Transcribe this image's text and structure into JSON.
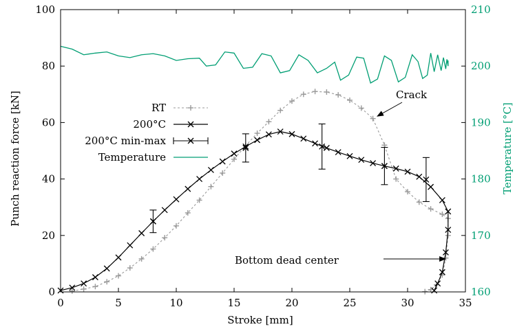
{
  "chart_data": {
    "type": "line",
    "xlabel": "Stroke [mm]",
    "ylabel": "Punch reaction force [kN]",
    "y2label": "Temperature [°C]",
    "xlim": [
      0,
      35
    ],
    "ylim": [
      0,
      100
    ],
    "y2lim": [
      160,
      210
    ],
    "xticks": [
      "0",
      "5",
      "10",
      "15",
      "20",
      "25",
      "30",
      "35"
    ],
    "yticks": [
      "0",
      "20",
      "40",
      "60",
      "80",
      "100"
    ],
    "y2ticks": [
      "160",
      "170",
      "180",
      "190",
      "200",
      "210"
    ],
    "grid": false,
    "legend_position": "center-left",
    "colors": {
      "rt": "#999999",
      "hot": "#000000",
      "temperature": "#009e73"
    },
    "series": [
      {
        "name": "RT",
        "axis": "left",
        "marker": "plus",
        "points": [
          [
            1.0,
            0.3
          ],
          [
            2.0,
            1.0
          ],
          [
            3.0,
            1.9
          ],
          [
            4.0,
            3.6
          ],
          [
            5.0,
            5.7
          ],
          [
            6.0,
            8.5
          ],
          [
            7.0,
            11.7
          ],
          [
            8.0,
            15.2
          ],
          [
            9.0,
            19.2
          ],
          [
            10.0,
            23.4
          ],
          [
            11.0,
            28.0
          ],
          [
            12.0,
            32.5
          ],
          [
            13.0,
            37.3
          ],
          [
            14.0,
            42.1
          ],
          [
            15.0,
            47.0
          ],
          [
            16.0,
            51.8
          ],
          [
            17.0,
            56.2
          ],
          [
            18.0,
            60.3
          ],
          [
            19.0,
            64.3
          ],
          [
            20.0,
            67.6
          ],
          [
            21.0,
            70.0
          ],
          [
            22.0,
            71.0
          ],
          [
            23.0,
            70.8
          ],
          [
            24.0,
            69.8
          ],
          [
            25.0,
            67.9
          ],
          [
            26.0,
            65.1
          ],
          [
            27.0,
            61.4
          ],
          [
            28.0,
            52.0
          ],
          [
            29.0,
            40.0
          ],
          [
            30.0,
            35.5
          ],
          [
            31.0,
            31.8
          ],
          [
            32.0,
            29.4
          ],
          [
            33.0,
            27.5
          ],
          [
            33.5,
            26.0
          ],
          [
            33.5,
            20.0
          ],
          [
            33.3,
            12.0
          ],
          [
            33.0,
            6.0
          ],
          [
            32.5,
            2.5
          ],
          [
            32.0,
            0.8
          ],
          [
            31.5,
            0.1
          ]
        ]
      },
      {
        "name": "200°C",
        "axis": "left",
        "marker": "cross",
        "points": [
          [
            0.0,
            0.5
          ],
          [
            1.0,
            1.5
          ],
          [
            2.0,
            3.0
          ],
          [
            3.0,
            5.2
          ],
          [
            4.0,
            8.3
          ],
          [
            5.0,
            12.2
          ],
          [
            6.0,
            16.5
          ],
          [
            7.0,
            20.8
          ],
          [
            8.0,
            25.0
          ],
          [
            9.0,
            29.0
          ],
          [
            10.0,
            32.8
          ],
          [
            11.0,
            36.5
          ],
          [
            12.0,
            40.0
          ],
          [
            13.0,
            43.2
          ],
          [
            14.0,
            46.2
          ],
          [
            15.0,
            49.0
          ],
          [
            16.0,
            51.5
          ],
          [
            17.0,
            53.8
          ],
          [
            18.0,
            55.8
          ],
          [
            19.0,
            56.8
          ],
          [
            20.0,
            55.9
          ],
          [
            21.0,
            54.3
          ],
          [
            22.0,
            52.6
          ],
          [
            23.0,
            51.0
          ],
          [
            24.0,
            49.5
          ],
          [
            25.0,
            48.1
          ],
          [
            26.0,
            46.8
          ],
          [
            27.0,
            45.6
          ],
          [
            28.0,
            44.6
          ],
          [
            29.0,
            43.7
          ],
          [
            30.0,
            42.6
          ],
          [
            31.0,
            40.8
          ],
          [
            32.0,
            37.2
          ],
          [
            33.0,
            32.5
          ],
          [
            33.5,
            28.5
          ],
          [
            33.5,
            22.0
          ],
          [
            33.3,
            14.0
          ],
          [
            33.0,
            7.0
          ],
          [
            32.6,
            3.0
          ],
          [
            32.3,
            0.5
          ]
        ]
      },
      {
        "name": "200°C min-max",
        "axis": "left",
        "marker": "errorbar",
        "points": [
          [
            8.0,
            25.0,
            21.0,
            29.0
          ],
          [
            16.0,
            51.0,
            46.0,
            56.0
          ],
          [
            22.6,
            51.5,
            43.5,
            59.5
          ],
          [
            28.0,
            44.6,
            38.0,
            51.2
          ],
          [
            31.6,
            39.8,
            32.0,
            47.6
          ]
        ]
      },
      {
        "name": "Temperature",
        "axis": "right",
        "marker": "none",
        "points": [
          [
            0.0,
            203.5
          ],
          [
            1.0,
            203.0
          ],
          [
            2.0,
            202.0
          ],
          [
            3.0,
            202.3
          ],
          [
            4.0,
            202.5
          ],
          [
            5.0,
            201.8
          ],
          [
            6.0,
            201.5
          ],
          [
            7.0,
            202.0
          ],
          [
            8.0,
            202.2
          ],
          [
            9.0,
            201.8
          ],
          [
            10.0,
            201.0
          ],
          [
            11.0,
            201.3
          ],
          [
            12.0,
            201.4
          ],
          [
            12.6,
            200.0
          ],
          [
            13.4,
            200.2
          ],
          [
            14.2,
            202.5
          ],
          [
            15.0,
            202.3
          ],
          [
            15.8,
            199.6
          ],
          [
            16.6,
            199.8
          ],
          [
            17.4,
            202.2
          ],
          [
            18.2,
            201.8
          ],
          [
            19.0,
            198.8
          ],
          [
            19.8,
            199.2
          ],
          [
            20.6,
            202.0
          ],
          [
            21.4,
            201.0
          ],
          [
            22.2,
            198.8
          ],
          [
            23.0,
            199.6
          ],
          [
            23.7,
            200.7
          ],
          [
            24.2,
            197.5
          ],
          [
            24.9,
            198.4
          ],
          [
            25.6,
            201.6
          ],
          [
            26.2,
            201.4
          ],
          [
            26.8,
            197.0
          ],
          [
            27.4,
            197.7
          ],
          [
            28.0,
            201.8
          ],
          [
            28.6,
            201.0
          ],
          [
            29.2,
            197.2
          ],
          [
            29.8,
            198.0
          ],
          [
            30.4,
            202.0
          ],
          [
            30.9,
            200.8
          ],
          [
            31.3,
            197.8
          ],
          [
            31.7,
            198.4
          ],
          [
            32.0,
            202.3
          ],
          [
            32.3,
            199.0
          ],
          [
            32.6,
            202.0
          ],
          [
            32.9,
            199.2
          ],
          [
            33.1,
            201.5
          ],
          [
            33.3,
            199.5
          ],
          [
            33.4,
            201.2
          ],
          [
            33.5,
            200.0
          ],
          [
            33.5,
            201.0
          ]
        ]
      }
    ],
    "annotations": [
      {
        "text": "Crack",
        "target": [
          27.2,
          61.5
        ]
      },
      {
        "text": "Bottom dead center",
        "target": [
          33.4,
          26.0
        ]
      }
    ]
  }
}
